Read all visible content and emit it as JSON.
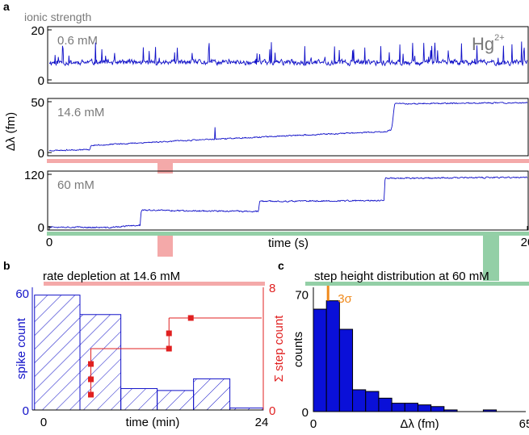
{
  "figure": {
    "panel_a_letter": "a",
    "panel_b_letter": "b",
    "panel_c_letter": "c",
    "ionic_strength_label": "ionic strength",
    "ion_label": "Hg",
    "ion_charge": "2+",
    "shared_ylabel": "Δλ (fm)"
  },
  "colors": {
    "trace": "#1010c8",
    "axis": "#000000",
    "gray_text": "#7a7a7a",
    "red": "#e02020",
    "red_band": "#f4a9a9",
    "green_band": "#93cfa6",
    "orange": "#f08a1c",
    "bar_blue": "#0a10d8"
  },
  "chart_data": [
    {
      "id": "a1",
      "type": "line",
      "label": "0.6 mM",
      "xlim": [
        0,
        20
      ],
      "ylim": [
        0,
        20
      ],
      "yticks": [
        0,
        20
      ],
      "seed": 11,
      "baseline": 7,
      "noise": 1.6,
      "spike_rate": 0.07,
      "steps": []
    },
    {
      "id": "a2",
      "type": "line",
      "label": "14.6 mM",
      "xlim": [
        0,
        20
      ],
      "ylim": [
        0,
        50
      ],
      "yticks": [
        0,
        50
      ],
      "seed": 23,
      "noise": 0.9,
      "spike_rate": 0.004,
      "points": [
        [
          0,
          2
        ],
        [
          1.7,
          3
        ],
        [
          1.75,
          7
        ],
        [
          5,
          11
        ],
        [
          10,
          16.5
        ],
        [
          14,
          20.5
        ],
        [
          14.3,
          22
        ],
        [
          14.35,
          28
        ],
        [
          14.45,
          48
        ],
        [
          20,
          49
        ]
      ]
    },
    {
      "id": "a3",
      "type": "line",
      "label": "60 mM",
      "xlim": [
        0,
        20
      ],
      "ylim": [
        0,
        120
      ],
      "yticks": [
        0,
        120
      ],
      "xticks": [
        0,
        20
      ],
      "xlabel": "time (s)",
      "seed": 37,
      "noise": 2.4,
      "spike_rate": 0.0,
      "points": [
        [
          0,
          0
        ],
        [
          2.5,
          -2
        ],
        [
          3.8,
          4
        ],
        [
          3.85,
          38
        ],
        [
          8.75,
          35
        ],
        [
          8.8,
          58
        ],
        [
          14,
          60
        ],
        [
          14.05,
          111
        ],
        [
          20,
          113
        ]
      ]
    },
    {
      "id": "b",
      "type": "bar",
      "title": "rate depletion at 14.6 mM",
      "xlabel": "time (min)",
      "xlim": [
        0,
        24
      ],
      "xticks": [
        0,
        24
      ],
      "ylabel_left": "spike count",
      "ylim_left": [
        0,
        63
      ],
      "yticks_left": [
        0,
        60
      ],
      "ylabel_right": "Σ step count",
      "ylim_right": [
        0,
        8
      ],
      "yticks_right": [
        0,
        8
      ],
      "bins": [
        [
          -1,
          4
        ],
        [
          4,
          8.5
        ],
        [
          8.5,
          12.5
        ],
        [
          12.5,
          16.5
        ],
        [
          16.5,
          20.5
        ],
        [
          20.5,
          24.5
        ]
      ],
      "spike_counts": [
        59,
        49,
        11,
        10,
        16,
        1
      ],
      "step_points": {
        "x": [
          5.2,
          5.2,
          5.2,
          13.8,
          13.8,
          16.2
        ],
        "y": [
          1,
          2,
          3,
          4,
          5,
          6
        ]
      }
    },
    {
      "id": "c",
      "type": "bar",
      "title": "step height distribution at 60 mM",
      "xlabel": "Δλ (fm)",
      "ylabel": "counts",
      "xlim": [
        0,
        65
      ],
      "xticks": [
        0,
        65
      ],
      "ylim": [
        0,
        74
      ],
      "yticks": [
        0,
        70
      ],
      "bin_width": 4,
      "counts": [
        61,
        66,
        49,
        13,
        12,
        8,
        5,
        5,
        4,
        3,
        1,
        0,
        0,
        1,
        0,
        0
      ],
      "threshold_label": "3σ",
      "threshold_x": 4.5
    }
  ]
}
